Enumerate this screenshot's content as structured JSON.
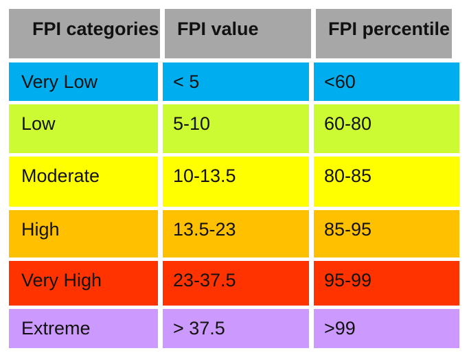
{
  "table": {
    "columns": [
      "FPI categories",
      "FPI value",
      "FPI percentile"
    ],
    "header_bg": "#A7A7A7",
    "text_color": "#111111",
    "rows": [
      {
        "category": "Very Low",
        "value": "< 5",
        "percentile": "<60",
        "color": "#00AEEF"
      },
      {
        "category": "Low",
        "value": "5-10",
        "percentile": "60-80",
        "color": "#CCFB33"
      },
      {
        "category": "Moderate",
        "value": "10-13.5",
        "percentile": "80-85",
        "color": "#FFFF00"
      },
      {
        "category": "High",
        "value": "13.5-23",
        "percentile": "85-95",
        "color": "#FFC000"
      },
      {
        "category": "Very High",
        "value": "23-37.5",
        "percentile": "95-99",
        "color": "#FF3300"
      },
      {
        "category": "Extreme",
        "value": "> 37.5",
        "percentile": ">99",
        "color": "#CC99FF"
      }
    ]
  }
}
